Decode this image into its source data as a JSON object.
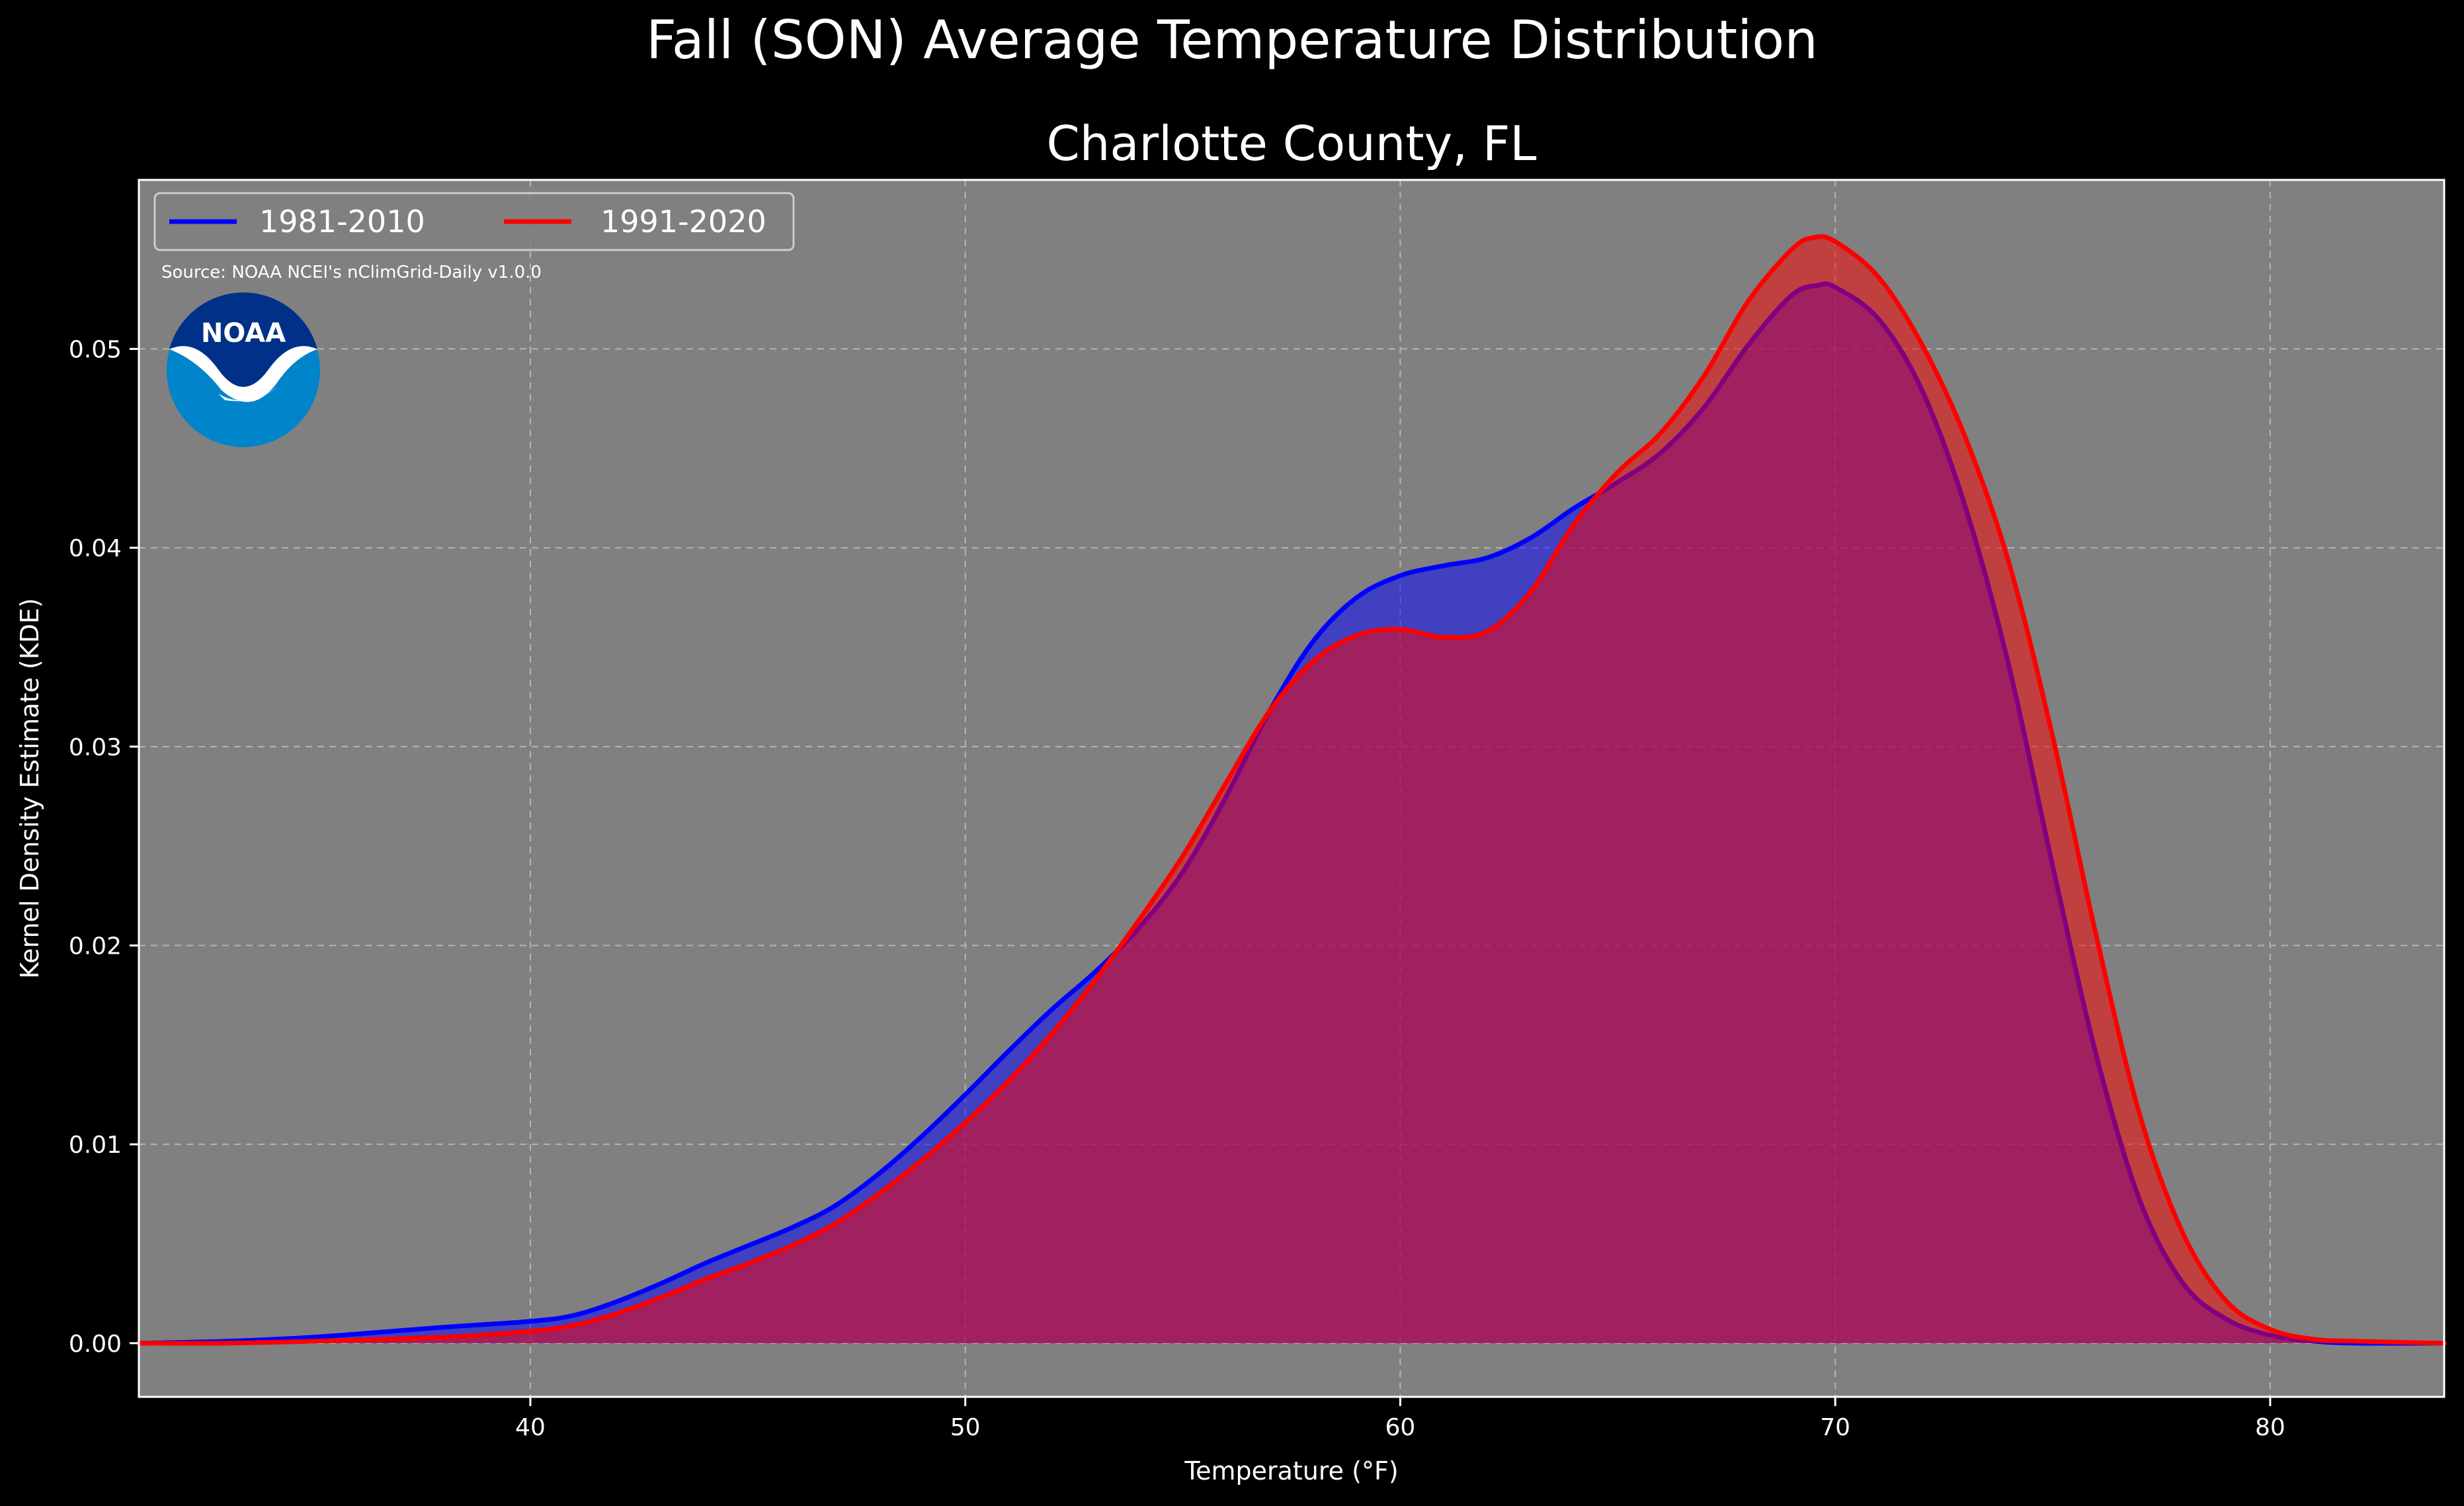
{
  "chart_data": {
    "type": "area",
    "title": "Fall (SON) Average Temperature Distribution",
    "subtitle": "Charlotte County, FL",
    "xlabel": "Temperature (°F)",
    "ylabel": "Kernel Density Estimate (KDE)",
    "xlim": [
      31,
      84
    ],
    "ylim": [
      -0.0027,
      0.0585
    ],
    "xticks": [
      40,
      50,
      60,
      70,
      80
    ],
    "yticks": [
      0.0,
      0.01,
      0.02,
      0.03,
      0.04,
      0.05
    ],
    "xtick_labels": [
      "40",
      "50",
      "60",
      "70",
      "80"
    ],
    "ytick_labels": [
      "0.00",
      "0.01",
      "0.02",
      "0.03",
      "0.04",
      "0.05"
    ],
    "grid": true,
    "legend_position": "top-left",
    "source": "Source: NOAA NCEI's nClimGrid-Daily v1.0.0",
    "logo_text": "NOAA",
    "colors": {
      "background": "#000000",
      "plot_background": "#808080",
      "series_1": "#0000ff",
      "series_2": "#ff0000",
      "logo_outer": "#0085ca",
      "logo_inner": "#003087"
    },
    "series": [
      {
        "name": "1981-2010",
        "color": "#0000ff",
        "points": [
          [
            31,
            0
          ],
          [
            33,
            0.0001
          ],
          [
            35,
            0.0003
          ],
          [
            38,
            0.0008
          ],
          [
            40,
            0.0011
          ],
          [
            41,
            0.0014
          ],
          [
            42,
            0.0021
          ],
          [
            43,
            0.003
          ],
          [
            44,
            0.004
          ],
          [
            45,
            0.0049
          ],
          [
            46,
            0.0058
          ],
          [
            47,
            0.0069
          ],
          [
            48,
            0.0085
          ],
          [
            49,
            0.0104
          ],
          [
            50,
            0.0125
          ],
          [
            51,
            0.0147
          ],
          [
            52,
            0.0168
          ],
          [
            53,
            0.0187
          ],
          [
            54,
            0.0209
          ],
          [
            55,
            0.0237
          ],
          [
            56,
            0.0275
          ],
          [
            57,
            0.0318
          ],
          [
            58,
            0.0353
          ],
          [
            59,
            0.0375
          ],
          [
            60,
            0.0386
          ],
          [
            61,
            0.0391
          ],
          [
            62,
            0.0395
          ],
          [
            63,
            0.0405
          ],
          [
            64,
            0.042
          ],
          [
            65,
            0.0433
          ],
          [
            66,
            0.0448
          ],
          [
            67,
            0.0471
          ],
          [
            68,
            0.0502
          ],
          [
            69,
            0.0527
          ],
          [
            69.6,
            0.0532
          ],
          [
            70,
            0.0531
          ],
          [
            71,
            0.0515
          ],
          [
            72,
            0.0479
          ],
          [
            73,
            0.042
          ],
          [
            74,
            0.034
          ],
          [
            75,
            0.024
          ],
          [
            76,
            0.0145
          ],
          [
            77,
            0.0072
          ],
          [
            78,
            0.003
          ],
          [
            79,
            0.0012
          ],
          [
            80,
            0.0004
          ],
          [
            81,
            0.0001
          ],
          [
            82,
            0
          ],
          [
            84,
            0
          ]
        ]
      },
      {
        "name": "1991-2020",
        "color": "#ff0000",
        "points": [
          [
            31,
            0
          ],
          [
            33,
            0
          ],
          [
            35,
            0.0001
          ],
          [
            38,
            0.0003
          ],
          [
            40,
            0.0006
          ],
          [
            41,
            0.0009
          ],
          [
            42,
            0.0015
          ],
          [
            43,
            0.0023
          ],
          [
            44,
            0.0032
          ],
          [
            45,
            0.004
          ],
          [
            46,
            0.0049
          ],
          [
            47,
            0.006
          ],
          [
            48,
            0.0075
          ],
          [
            49,
            0.0092
          ],
          [
            50,
            0.0111
          ],
          [
            51,
            0.0132
          ],
          [
            52,
            0.0156
          ],
          [
            53,
            0.0183
          ],
          [
            54,
            0.0213
          ],
          [
            55,
            0.0245
          ],
          [
            56,
            0.0282
          ],
          [
            57,
            0.0318
          ],
          [
            58,
            0.0343
          ],
          [
            59,
            0.0356
          ],
          [
            60,
            0.0359
          ],
          [
            61,
            0.0355
          ],
          [
            62,
            0.0358
          ],
          [
            63,
            0.0378
          ],
          [
            64,
            0.0412
          ],
          [
            65,
            0.0438
          ],
          [
            66,
            0.0458
          ],
          [
            67,
            0.0487
          ],
          [
            68,
            0.0524
          ],
          [
            69,
            0.055
          ],
          [
            69.5,
            0.0556
          ],
          [
            70,
            0.0554
          ],
          [
            71,
            0.0536
          ],
          [
            72,
            0.0502
          ],
          [
            73,
            0.0455
          ],
          [
            74,
            0.0392
          ],
          [
            75,
            0.0305
          ],
          [
            76,
            0.0205
          ],
          [
            77,
            0.0115
          ],
          [
            78,
            0.0055
          ],
          [
            79,
            0.0021
          ],
          [
            80,
            0.0007
          ],
          [
            81,
            0.0002
          ],
          [
            82,
            0.0001
          ],
          [
            84,
            0
          ]
        ]
      }
    ]
  }
}
